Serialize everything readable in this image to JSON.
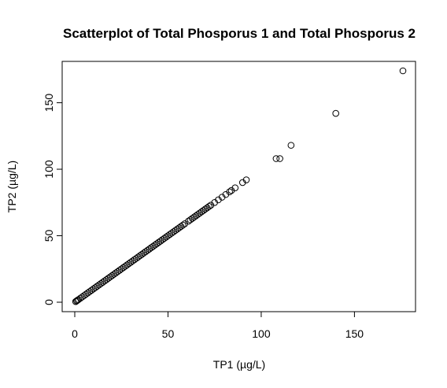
{
  "chart_data": {
    "type": "scatter",
    "title": "Scatterplot of Total Phosporus 1 and Total Phosporus 2",
    "xlabel": "TP1 (µg/L)",
    "ylabel": "TP2 (µg/L)",
    "xlim": [
      0,
      176
    ],
    "ylim": [
      0,
      174
    ],
    "xticks": [
      0,
      50,
      100,
      150
    ],
    "yticks": [
      0,
      50,
      100,
      150
    ],
    "grid": false,
    "legend": "none",
    "marker": "open-circle",
    "series": [
      {
        "points": [
          [
            0.5,
            0.5
          ],
          [
            1,
            1
          ],
          [
            1.5,
            1.5
          ],
          [
            2,
            2
          ],
          [
            3,
            3
          ],
          [
            4,
            4
          ],
          [
            5,
            5
          ],
          [
            6,
            6
          ],
          [
            7,
            7
          ],
          [
            8,
            8
          ],
          [
            9,
            9
          ],
          [
            10,
            10
          ],
          [
            11,
            11
          ],
          [
            12,
            12
          ],
          [
            13,
            13
          ],
          [
            14,
            14
          ],
          [
            15,
            15
          ],
          [
            16,
            16
          ],
          [
            17,
            17
          ],
          [
            18,
            18
          ],
          [
            19,
            19
          ],
          [
            20,
            20
          ],
          [
            21,
            21
          ],
          [
            22,
            22
          ],
          [
            23,
            23
          ],
          [
            24,
            24
          ],
          [
            25,
            25
          ],
          [
            26,
            26
          ],
          [
            27,
            27
          ],
          [
            28,
            28
          ],
          [
            29,
            29
          ],
          [
            30,
            30
          ],
          [
            31,
            31
          ],
          [
            32,
            32
          ],
          [
            33,
            33
          ],
          [
            34,
            34
          ],
          [
            35,
            35
          ],
          [
            36,
            36
          ],
          [
            37,
            37
          ],
          [
            38,
            38
          ],
          [
            39,
            39
          ],
          [
            40,
            40
          ],
          [
            41,
            41
          ],
          [
            42,
            42
          ],
          [
            43,
            43
          ],
          [
            44,
            44
          ],
          [
            45,
            45
          ],
          [
            46,
            46
          ],
          [
            47,
            47
          ],
          [
            48,
            48
          ],
          [
            49,
            49
          ],
          [
            50,
            50
          ],
          [
            51,
            51
          ],
          [
            52,
            52
          ],
          [
            53,
            53
          ],
          [
            54,
            54
          ],
          [
            55,
            55
          ],
          [
            56,
            56
          ],
          [
            57,
            57
          ],
          [
            58,
            58
          ],
          [
            59,
            59
          ],
          [
            61,
            61
          ],
          [
            62,
            62
          ],
          [
            63,
            63
          ],
          [
            64,
            64
          ],
          [
            65,
            65
          ],
          [
            66,
            66
          ],
          [
            67,
            67
          ],
          [
            68,
            68
          ],
          [
            69,
            69
          ],
          [
            70,
            70
          ],
          [
            71,
            71
          ],
          [
            72,
            72
          ],
          [
            73,
            73
          ],
          [
            75,
            75
          ],
          [
            77,
            77
          ],
          [
            79,
            79
          ],
          [
            81,
            81
          ],
          [
            83,
            83
          ],
          [
            84,
            84
          ],
          [
            86,
            86
          ],
          [
            90,
            90
          ],
          [
            92,
            92
          ],
          [
            108,
            108
          ],
          [
            110,
            108
          ],
          [
            116,
            118
          ],
          [
            140,
            142
          ],
          [
            176,
            174
          ]
        ]
      }
    ]
  }
}
